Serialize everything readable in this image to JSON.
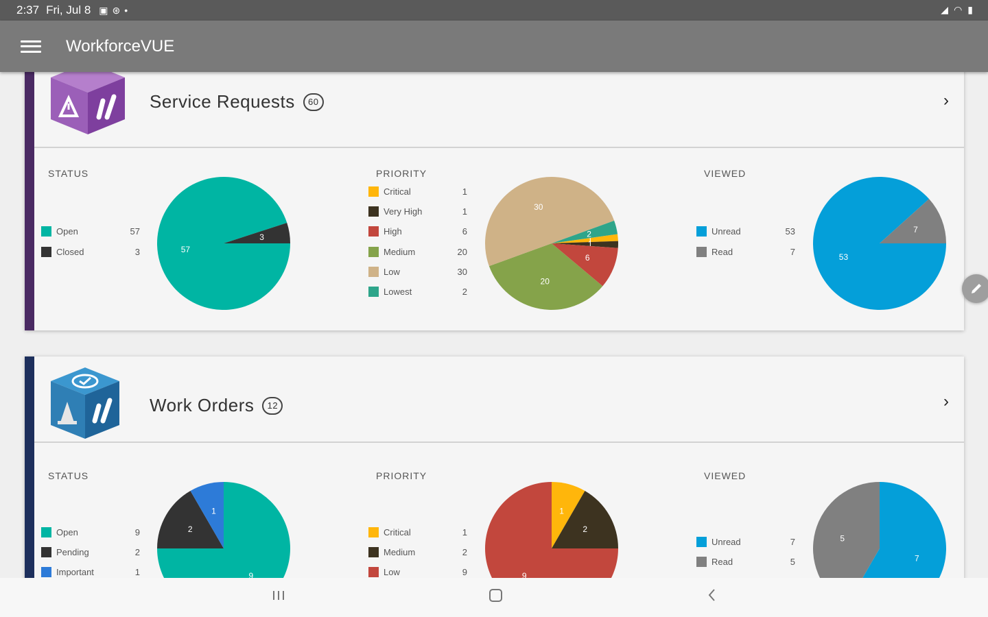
{
  "status_bar": {
    "time": "2:37",
    "date": "Fri, Jul 8"
  },
  "app": {
    "title": "WorkforceVUE"
  },
  "cards": [
    {
      "title": "Service Requests",
      "count": "60",
      "status": {
        "label": "STATUS",
        "items": [
          {
            "label": "Open",
            "value": 57,
            "color": "#00b5a3"
          },
          {
            "label": "Closed",
            "value": 3,
            "color": "#333333"
          }
        ]
      },
      "priority": {
        "label": "PRIORITY",
        "items": [
          {
            "label": "Critical",
            "value": 1,
            "color": "#ffb60b"
          },
          {
            "label": "Very High",
            "value": 1,
            "color": "#3d3320"
          },
          {
            "label": "High",
            "value": 6,
            "color": "#c2473d"
          },
          {
            "label": "Medium",
            "value": 20,
            "color": "#85a34a"
          },
          {
            "label": "Low",
            "value": 30,
            "color": "#cfb287"
          },
          {
            "label": "Lowest",
            "value": 2,
            "color": "#2ea58a"
          }
        ]
      },
      "viewed": {
        "label": "VIEWED",
        "items": [
          {
            "label": "Unread",
            "value": 53,
            "color": "#049fd9"
          },
          {
            "label": "Read",
            "value": 7,
            "color": "#808080"
          }
        ]
      }
    },
    {
      "title": "Work Orders",
      "count": "12",
      "status": {
        "label": "STATUS",
        "items": [
          {
            "label": "Open",
            "value": 9,
            "color": "#00b5a3"
          },
          {
            "label": "Pending",
            "value": 2,
            "color": "#333333"
          },
          {
            "label": "Important",
            "value": 1,
            "color": "#2d7bd8"
          }
        ]
      },
      "priority": {
        "label": "PRIORITY",
        "items": [
          {
            "label": "Critical",
            "value": 1,
            "color": "#ffb60b"
          },
          {
            "label": "Medium",
            "value": 2,
            "color": "#3d3320"
          },
          {
            "label": "Low",
            "value": 9,
            "color": "#c2473d"
          }
        ]
      },
      "viewed": {
        "label": "VIEWED",
        "items": [
          {
            "label": "Unread",
            "value": 7,
            "color": "#049fd9"
          },
          {
            "label": "Read",
            "value": 5,
            "color": "#808080"
          }
        ]
      }
    }
  ],
  "icons": {
    "menu": "menu-icon",
    "chevron": "chevron-right-icon",
    "edit": "edit-pencil-icon",
    "service_logo": "service-requests-logo",
    "work_logo": "work-orders-logo"
  }
}
